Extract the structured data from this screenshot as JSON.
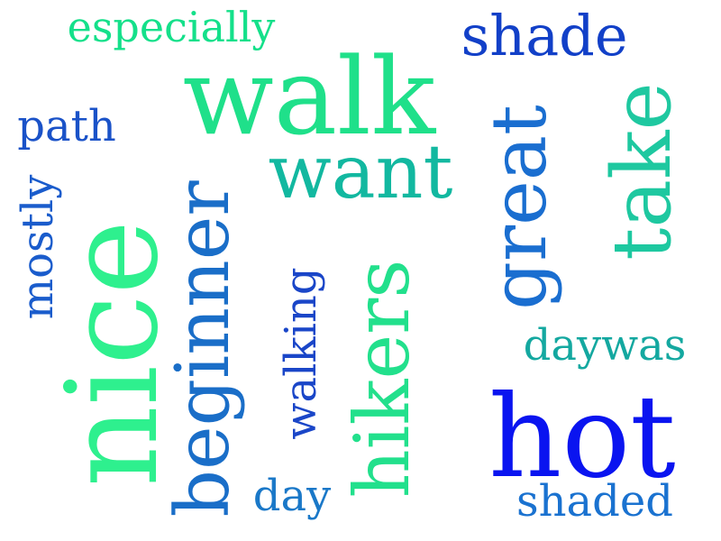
{
  "words": [
    {
      "id": "especially",
      "text": "especially",
      "color": "#14e08a",
      "orientation": "horizontal"
    },
    {
      "id": "shade",
      "text": "shade",
      "color": "#1240c8",
      "orientation": "horizontal"
    },
    {
      "id": "walk",
      "text": "walk",
      "color": "#1fe08a",
      "orientation": "horizontal"
    },
    {
      "id": "path",
      "text": "path",
      "color": "#1a52c8",
      "orientation": "horizontal"
    },
    {
      "id": "want",
      "text": "want",
      "color": "#12b8a0",
      "orientation": "horizontal"
    },
    {
      "id": "great",
      "text": "great",
      "color": "#1a6ed0",
      "orientation": "vertical"
    },
    {
      "id": "take",
      "text": "take",
      "color": "#1ec8a0",
      "orientation": "vertical"
    },
    {
      "id": "mostly",
      "text": "mostly",
      "color": "#1a5ccc",
      "orientation": "vertical"
    },
    {
      "id": "nice",
      "text": "nice",
      "color": "#2ef08e",
      "orientation": "vertical"
    },
    {
      "id": "beginner",
      "text": "beginner",
      "color": "#1a6ec8",
      "orientation": "vertical"
    },
    {
      "id": "walking",
      "text": "walking",
      "color": "#1a46c8",
      "orientation": "vertical"
    },
    {
      "id": "hikers",
      "text": "hikers",
      "color": "#22e08c",
      "orientation": "vertical"
    },
    {
      "id": "daywas",
      "text": "daywas",
      "color": "#14a8a0",
      "orientation": "horizontal"
    },
    {
      "id": "hot",
      "text": "hot",
      "color": "#0a14f0",
      "orientation": "horizontal"
    },
    {
      "id": "day",
      "text": "day",
      "color": "#1a78c8",
      "orientation": "horizontal"
    },
    {
      "id": "shaded",
      "text": "shaded",
      "color": "#1a72d0",
      "orientation": "horizontal"
    }
  ]
}
